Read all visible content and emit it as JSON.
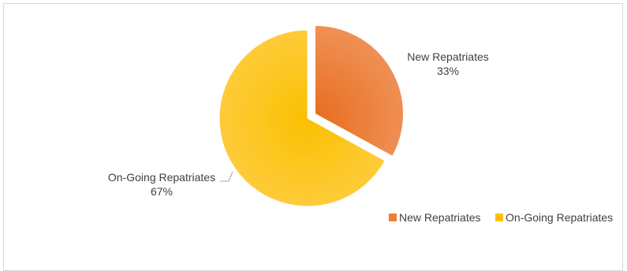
{
  "chart_data": {
    "type": "pie",
    "title": "",
    "slices": [
      {
        "name": "New Repatriates",
        "value": 33,
        "label": "33%",
        "color": "#ED7D31"
      },
      {
        "name": "On-Going Repatriates",
        "value": 67,
        "label": "67%",
        "color": "#FFC000"
      }
    ],
    "legend": {
      "position": "bottom-right",
      "items": [
        "New Repatriates",
        "On-Going Repatriates"
      ]
    },
    "exploded_slice": "New Repatriates"
  }
}
